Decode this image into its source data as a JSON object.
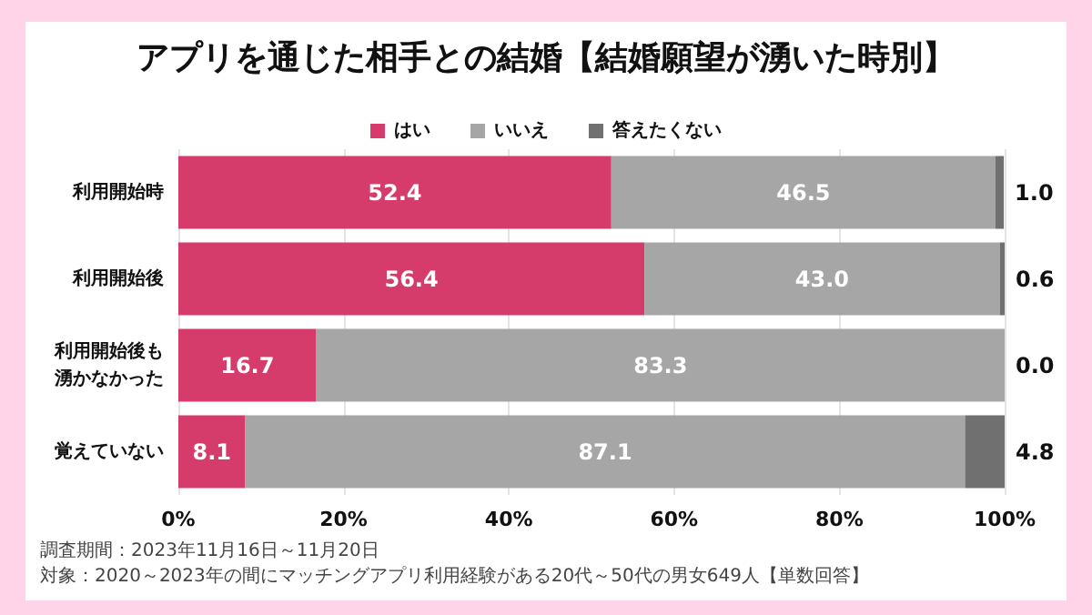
{
  "chart_data": {
    "type": "bar",
    "orientation": "horizontal",
    "stacked": true,
    "title": "アプリを通じた相手との結婚【結婚願望が湧いた時別】",
    "categories": [
      "利用開始時",
      "利用開始後",
      "利用開始後も湧かなかった",
      "覚えていない"
    ],
    "series": [
      {
        "name": "はい",
        "color": "#d63c6b",
        "values": [
          52.4,
          56.4,
          16.7,
          8.1
        ],
        "value_labels": [
          "52.4",
          "56.4",
          "16.7",
          "8.1"
        ]
      },
      {
        "name": "いいえ",
        "color": "#a6a6a6",
        "values": [
          46.5,
          43.0,
          83.3,
          87.1
        ],
        "value_labels": [
          "46.5",
          "43.0",
          "83.3",
          "87.1"
        ]
      },
      {
        "name": "答えたくない",
        "color": "#707070",
        "values": [
          1.0,
          0.6,
          0.0,
          4.8
        ],
        "value_labels": [
          "1.0",
          "0.6",
          "0.0",
          "4.8"
        ]
      }
    ],
    "xlim": [
      0,
      100
    ],
    "xticks": [
      {
        "value": 0,
        "label": "0%"
      },
      {
        "value": 20,
        "label": "20%"
      },
      {
        "value": 40,
        "label": "40%"
      },
      {
        "value": 60,
        "label": "60%"
      },
      {
        "value": 80,
        "label": "80%"
      },
      {
        "value": 100,
        "label": "100%"
      }
    ],
    "grid": "x",
    "legend": "top",
    "annotations": [
      "調査期間：2023年11月16日～11月20日",
      "対象：2020～2023年の間にマッチングアプリ利用経験がある20代～50代の男女649人【単数回答】"
    ]
  }
}
